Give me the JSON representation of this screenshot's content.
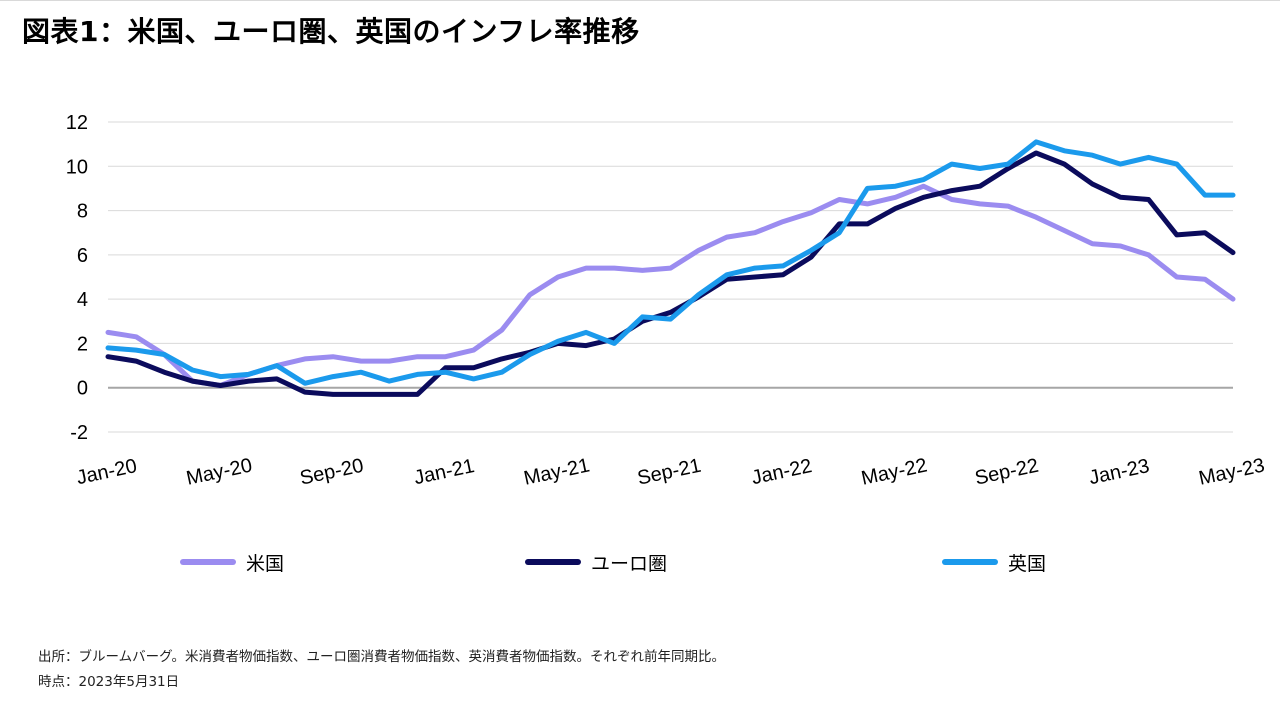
{
  "title": "図表1：米国、ユーロ圏、英国のインフレ率推移",
  "footnotes": {
    "source": "出所：ブルームバーグ。米消費者物価指数、ユーロ圏消費者物価指数、英消費者物価指数。それぞれ前年同期比。",
    "as_of": "時点：2023年5月31日"
  },
  "chart_data": {
    "type": "line",
    "title": "",
    "xlabel": "",
    "ylabel": "",
    "ylim": [
      -2,
      12
    ],
    "yticks": [
      12,
      10,
      8,
      6,
      4,
      2,
      0,
      -2
    ],
    "grid": true,
    "legend_position": "bottom",
    "x": [
      "Jan-20",
      "Feb-20",
      "Mar-20",
      "Apr-20",
      "May-20",
      "Jun-20",
      "Jul-20",
      "Aug-20",
      "Sep-20",
      "Oct-20",
      "Nov-20",
      "Dec-20",
      "Jan-21",
      "Feb-21",
      "Mar-21",
      "Apr-21",
      "May-21",
      "Jun-21",
      "Jul-21",
      "Aug-21",
      "Sep-21",
      "Oct-21",
      "Nov-21",
      "Dec-21",
      "Jan-22",
      "Feb-22",
      "Mar-22",
      "Apr-22",
      "May-22",
      "Jun-22",
      "Jul-22",
      "Aug-22",
      "Sep-22",
      "Oct-22",
      "Nov-22",
      "Dec-22",
      "Jan-23",
      "Feb-23",
      "Mar-23",
      "Apr-23",
      "May-23"
    ],
    "xtick_labels": [
      "Jan-20",
      "May-20",
      "Sep-20",
      "Jan-21",
      "May-21",
      "Sep-21",
      "Jan-22",
      "May-22",
      "Sep-22",
      "Jan-23",
      "May-23"
    ],
    "series": [
      {
        "name": "米国",
        "color": "#9b8cf0",
        "values": [
          2.5,
          2.3,
          1.5,
          0.3,
          0.1,
          0.6,
          1.0,
          1.3,
          1.4,
          1.2,
          1.2,
          1.4,
          1.4,
          1.7,
          2.6,
          4.2,
          5.0,
          5.4,
          5.4,
          5.3,
          5.4,
          6.2,
          6.8,
          7.0,
          7.5,
          7.9,
          8.5,
          8.3,
          8.6,
          9.1,
          8.5,
          8.3,
          8.2,
          7.7,
          7.1,
          6.5,
          6.4,
          6.0,
          5.0,
          4.9,
          4.0
        ]
      },
      {
        "name": "ユーロ圏",
        "color": "#0b0b5c",
        "values": [
          1.4,
          1.2,
          0.7,
          0.3,
          0.1,
          0.3,
          0.4,
          -0.2,
          -0.3,
          -0.3,
          -0.3,
          -0.3,
          0.9,
          0.9,
          1.3,
          1.6,
          2.0,
          1.9,
          2.2,
          3.0,
          3.4,
          4.1,
          4.9,
          5.0,
          5.1,
          5.9,
          7.4,
          7.4,
          8.1,
          8.6,
          8.9,
          9.1,
          9.9,
          10.6,
          10.1,
          9.2,
          8.6,
          8.5,
          6.9,
          7.0,
          6.1
        ]
      },
      {
        "name": "英国",
        "color": "#1b9aec",
        "values": [
          1.8,
          1.7,
          1.5,
          0.8,
          0.5,
          0.6,
          1.0,
          0.2,
          0.5,
          0.7,
          0.3,
          0.6,
          0.7,
          0.4,
          0.7,
          1.5,
          2.1,
          2.5,
          2.0,
          3.2,
          3.1,
          4.2,
          5.1,
          5.4,
          5.5,
          6.2,
          7.0,
          9.0,
          9.1,
          9.4,
          10.1,
          9.9,
          10.1,
          11.1,
          10.7,
          10.5,
          10.1,
          10.4,
          10.1,
          8.7,
          8.7
        ]
      }
    ]
  }
}
